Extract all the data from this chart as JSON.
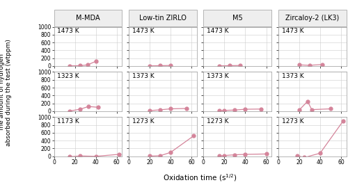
{
  "col_labels": [
    "M-MDA",
    "Low-tin ZIRLO",
    "M5",
    "Zircaloy-2 (LK3)"
  ],
  "row_temps": [
    [
      "1473 K",
      "1473 K",
      "1473 K",
      "1473 K"
    ],
    [
      "1323 K",
      "1373 K",
      "1373 K",
      "1373 K"
    ],
    [
      "1173 K",
      "1273 K",
      "1273 K",
      "1273 K"
    ]
  ],
  "data": [
    [
      {
        "x": [
          15,
          25,
          32,
          40
        ],
        "y": [
          5,
          10,
          30,
          120
        ]
      },
      {
        "x": [
          20,
          30,
          40
        ],
        "y": [
          5,
          10,
          15
        ]
      },
      {
        "x": [
          15,
          25,
          35
        ],
        "y": [
          5,
          10,
          15
        ]
      },
      {
        "x": [
          20,
          30,
          42
        ],
        "y": [
          30,
          20,
          40
        ]
      }
    ],
    [
      {
        "x": [
          15,
          25,
          33,
          42
        ],
        "y": [
          5,
          50,
          120,
          100
        ]
      },
      {
        "x": [
          20,
          30,
          40,
          55
        ],
        "y": [
          15,
          35,
          60,
          70
        ]
      },
      {
        "x": [
          15,
          20,
          30,
          40,
          55
        ],
        "y": [
          10,
          20,
          30,
          50,
          55
        ]
      },
      {
        "x": [
          20,
          28,
          32,
          50
        ],
        "y": [
          30,
          250,
          40,
          60
        ]
      }
    ],
    [
      {
        "x": [
          15,
          25,
          40,
          62
        ],
        "y": [
          -10,
          10,
          0,
          50
        ]
      },
      {
        "x": [
          20,
          30,
          40,
          62
        ],
        "y": [
          5,
          15,
          100,
          520
        ]
      },
      {
        "x": [
          15,
          20,
          30,
          40,
          60
        ],
        "y": [
          10,
          20,
          40,
          50,
          60
        ]
      },
      {
        "x": [
          18,
          25,
          40,
          62
        ],
        "y": [
          20,
          -30,
          80,
          900
        ]
      }
    ]
  ],
  "ylim": [
    0,
    1000
  ],
  "xlim": [
    0,
    65
  ],
  "yticks": [
    0,
    200,
    400,
    600,
    800,
    1000
  ],
  "xticks": [
    0,
    20,
    40,
    60
  ],
  "line_color": "#d4849a",
  "marker_color": "#d4849a",
  "marker_size": 3.5,
  "line_width": 0.9,
  "background_color": "#ffffff",
  "grid_color": "#cccccc",
  "header_bg": "#eeeeee",
  "fontsize_label": 6.5,
  "fontsize_tick": 5.5,
  "fontsize_temp": 6.5,
  "fontsize_col": 7,
  "fontsize_xlabel": 7.5
}
